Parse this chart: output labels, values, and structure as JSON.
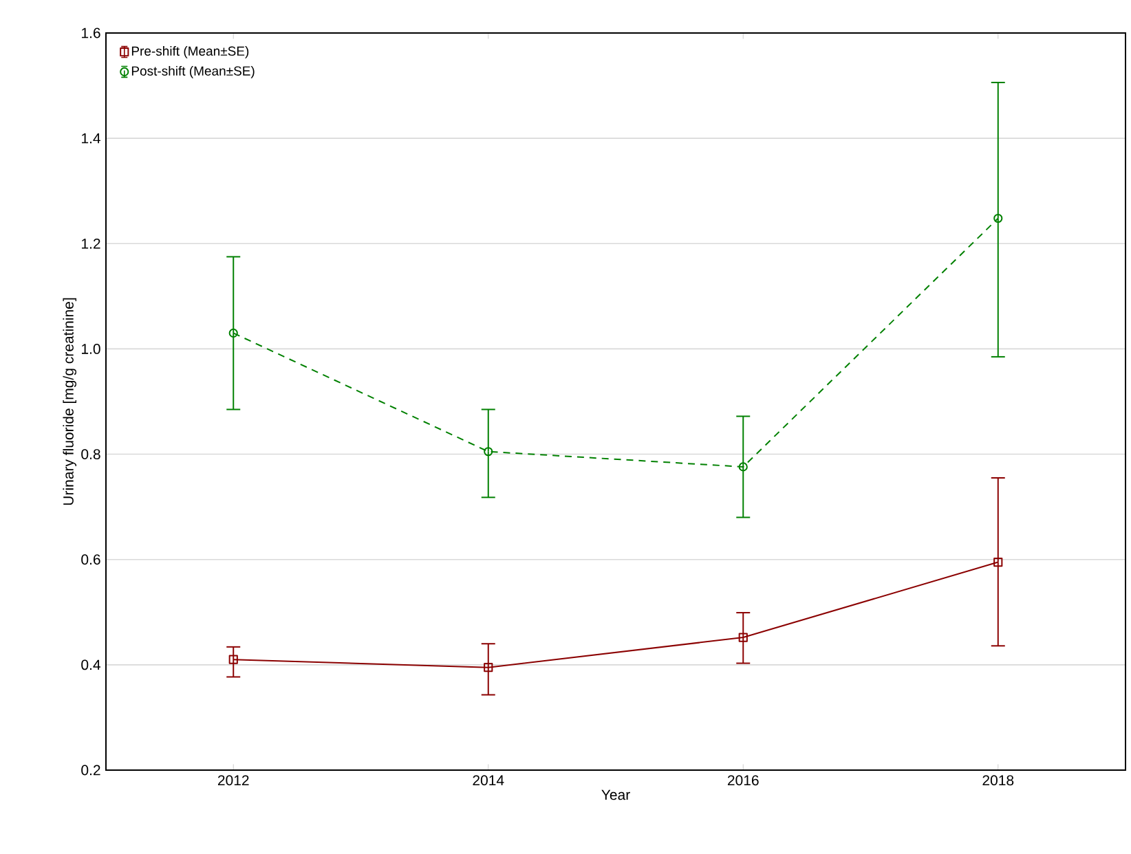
{
  "chart_data": {
    "type": "line",
    "xlabel": "Year",
    "ylabel": "Urinary fluoride [mg/g creatinine]",
    "x": [
      2012,
      2014,
      2016,
      2018
    ],
    "xlim": [
      2011,
      2019
    ],
    "xticks": [
      2012,
      2014,
      2016,
      2018
    ],
    "ylim": [
      0.2,
      1.6
    ],
    "yticks": [
      {
        "value": 0.2,
        "label": "0.2"
      },
      {
        "value": 0.4,
        "label": "0.4"
      },
      {
        "value": 0.6,
        "label": "0.6"
      },
      {
        "value": 0.8,
        "label": "0.8"
      },
      {
        "value": 1.0,
        "label": "1.0"
      },
      {
        "value": 1.2,
        "label": "1.2"
      },
      {
        "value": 1.4,
        "label": "1.4"
      },
      {
        "value": 1.6,
        "label": "1.6"
      }
    ],
    "grid": "y",
    "legend": "top left",
    "series": [
      {
        "name": "Pre-shift (Mean±SE)",
        "color": "#8b0000",
        "marker": "square",
        "line_style": "solid",
        "values": [
          0.41,
          0.395,
          0.452,
          0.595
        ],
        "errors": [
          [
            0.377,
            0.434
          ],
          [
            0.343,
            0.44
          ],
          [
            0.403,
            0.499
          ],
          [
            0.436,
            0.755
          ]
        ]
      },
      {
        "name": "Post-shift (Mean±SE)",
        "color": "#008000",
        "marker": "circle",
        "line_style": "dashed",
        "values": [
          1.03,
          0.805,
          0.776,
          1.248
        ],
        "errors": [
          [
            0.885,
            1.175
          ],
          [
            0.718,
            0.885
          ],
          [
            0.68,
            0.872
          ],
          [
            0.985,
            1.506
          ]
        ]
      }
    ]
  }
}
